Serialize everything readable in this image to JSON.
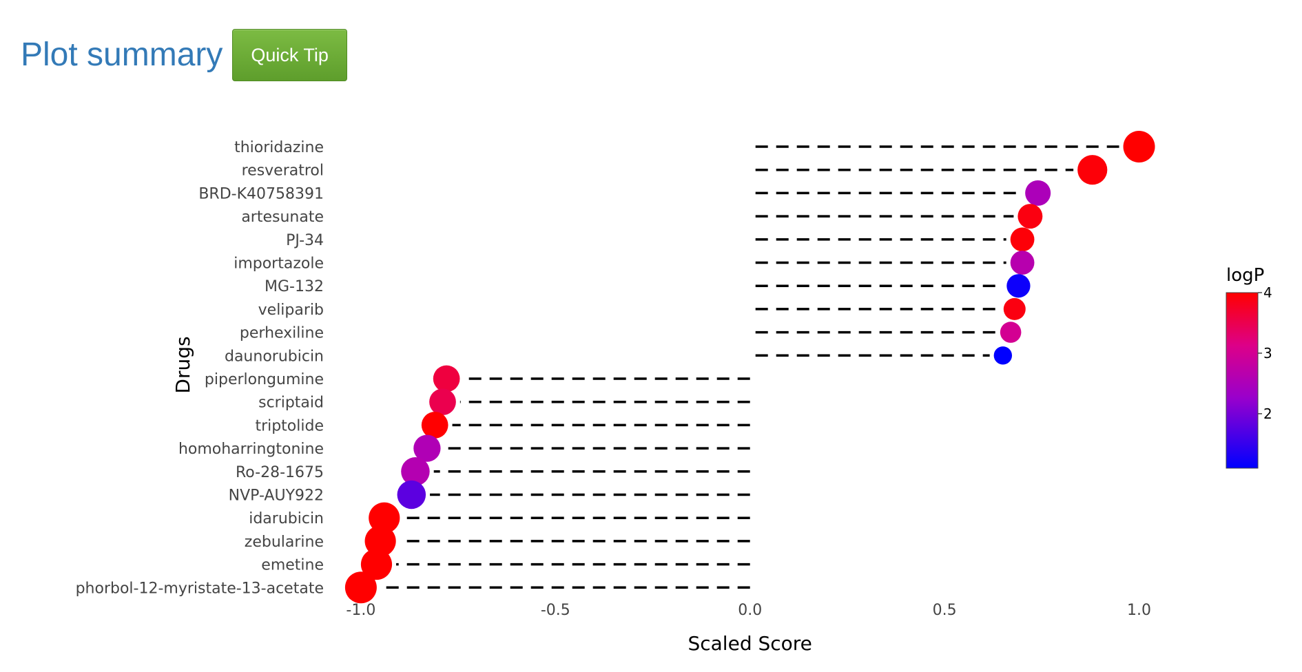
{
  "header": {
    "title": "Plot summary",
    "tip_button_label": "Quick Tip"
  },
  "chart_data": {
    "type": "scatter",
    "xlabel": "Scaled Score",
    "ylabel": "Drugs",
    "xlim": [
      -1.06,
      1.1
    ],
    "x_ticks": [
      -1.0,
      -0.5,
      0.0,
      0.5,
      1.0
    ],
    "x_tick_labels": [
      "-1.0",
      "-0.5",
      "0.0",
      "0.5",
      "1.0"
    ],
    "colorbar": {
      "title": "logP",
      "range": [
        1.1,
        4.0
      ],
      "ticks": [
        2,
        3,
        4
      ],
      "tick_labels": [
        "2",
        "3",
        "4"
      ],
      "colorscale": [
        "#0000ff",
        "#ff0000"
      ]
    },
    "grid": false,
    "legend_position": "right",
    "points": [
      {
        "drug": "thioridazine",
        "score": 1.0,
        "logP": 4.0,
        "size": 1.0
      },
      {
        "drug": "resveratrol",
        "score": 0.88,
        "logP": 3.95,
        "size": 0.9
      },
      {
        "drug": "BRD-K40758391",
        "score": 0.74,
        "logP": 2.5,
        "size": 0.68
      },
      {
        "drug": "artesunate",
        "score": 0.72,
        "logP": 3.9,
        "size": 0.64
      },
      {
        "drug": "PJ-34",
        "score": 0.7,
        "logP": 3.95,
        "size": 0.6
      },
      {
        "drug": "importazole",
        "score": 0.7,
        "logP": 2.65,
        "size": 0.6
      },
      {
        "drug": "MG-132",
        "score": 0.69,
        "logP": 1.2,
        "size": 0.58
      },
      {
        "drug": "veliparib",
        "score": 0.68,
        "logP": 3.9,
        "size": 0.5
      },
      {
        "drug": "perhexiline",
        "score": 0.67,
        "logP": 3.0,
        "size": 0.45
      },
      {
        "drug": "daunorubicin",
        "score": 0.65,
        "logP": 1.1,
        "size": 0.3
      },
      {
        "drug": "piperlongumine",
        "score": -0.78,
        "logP": 3.6,
        "size": 0.74
      },
      {
        "drug": "scriptaid",
        "score": -0.79,
        "logP": 3.5,
        "size": 0.74
      },
      {
        "drug": "triptolide",
        "score": -0.81,
        "logP": 4.0,
        "size": 0.74
      },
      {
        "drug": "homoharringtonine",
        "score": -0.83,
        "logP": 2.55,
        "size": 0.76
      },
      {
        "drug": "Ro-28-1675",
        "score": -0.86,
        "logP": 2.6,
        "size": 0.84
      },
      {
        "drug": "NVP-AUY922",
        "score": -0.87,
        "logP": 1.8,
        "size": 0.84
      },
      {
        "drug": "idarubicin",
        "score": -0.94,
        "logP": 4.0,
        "size": 0.97
      },
      {
        "drug": "zebularine",
        "score": -0.95,
        "logP": 4.0,
        "size": 0.97
      },
      {
        "drug": "emetine",
        "score": -0.96,
        "logP": 4.0,
        "size": 0.97
      },
      {
        "drug": "phorbol-12-myristate-13-acetate",
        "score": -1.0,
        "logP": 4.0,
        "size": 1.0
      }
    ]
  }
}
